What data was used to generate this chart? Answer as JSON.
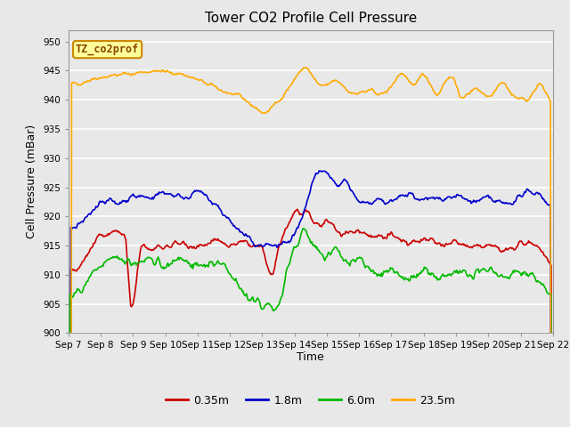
{
  "title": "Tower CO2 Profile Cell Pressure",
  "ylabel": "Cell Pressure (mBar)",
  "xlabel": "Time",
  "annotation": "TZ_co2prof",
  "ylim": [
    900,
    952
  ],
  "yticks": [
    900,
    905,
    910,
    915,
    920,
    925,
    930,
    935,
    940,
    945,
    950
  ],
  "xtick_labels": [
    "Sep 7",
    "Sep 8",
    "Sep 9",
    "Sep 10",
    "Sep 11",
    "Sep 12",
    "Sep 13",
    "Sep 14",
    "Sep 15",
    "Sep 16",
    "Sep 17",
    "Sep 18",
    "Sep 19",
    "Sep 20",
    "Sep 21",
    "Sep 22"
  ],
  "colors": {
    "0.35m": "#cc0000",
    "1.8m": "#0000cc",
    "6.0m": "#00bb00",
    "23.5m": "#ffaa00"
  },
  "legend_labels": [
    "0.35m",
    "1.8m",
    "6.0m",
    "23.5m"
  ],
  "fig_bg_color": "#e8e8e8",
  "axes_bg_color": "#e8e8e8",
  "grid_color": "#ffffff",
  "title_fontsize": 11,
  "label_fontsize": 9,
  "tick_fontsize": 7.5
}
